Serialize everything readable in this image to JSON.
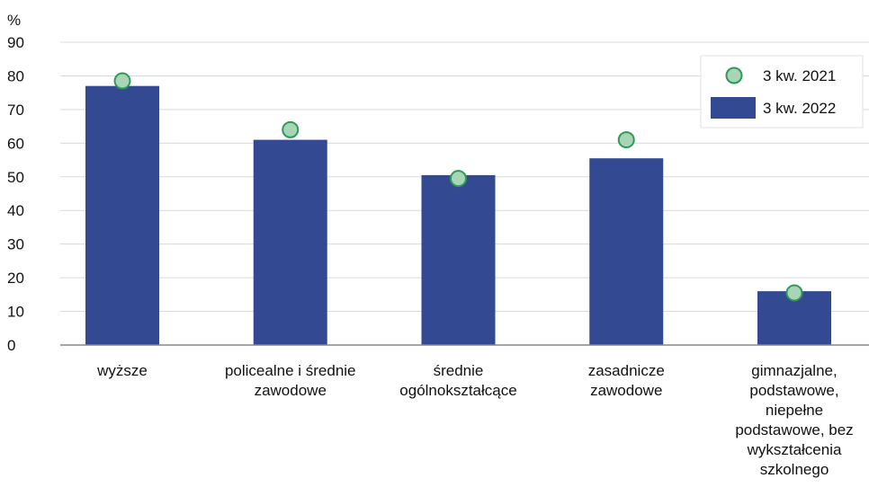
{
  "chart_data": {
    "type": "bar",
    "unit": "%",
    "categories": [
      [
        "wyższe"
      ],
      [
        "policealne i średnie",
        "zawodowe"
      ],
      [
        "średnie",
        "ogólnokształcące"
      ],
      [
        "zasadnicze",
        "zawodowe"
      ],
      [
        "gimnazjalne,",
        "podstawowe,",
        "niepełne",
        "podstawowe, bez",
        "wykształcenia",
        "szkolnego"
      ]
    ],
    "series": [
      {
        "name": "3 kw. 2022",
        "kind": "bar",
        "values": [
          77,
          61,
          50.5,
          55.5,
          16
        ],
        "color": "#334a93"
      },
      {
        "name": "3 kw. 2021",
        "kind": "point",
        "values": [
          78.5,
          64,
          49.5,
          61,
          15.5
        ],
        "color": "#a8d5b5",
        "stroke": "#2e9a57"
      }
    ],
    "ylim": [
      0,
      90
    ],
    "yticks": [
      0,
      10,
      20,
      30,
      40,
      50,
      60,
      70,
      80,
      90
    ],
    "grid": true,
    "legend_position": "top-right",
    "legend_order": [
      "3 kw. 2021",
      "3 kw. 2022"
    ]
  },
  "colors": {
    "bar": "#334a93",
    "point_fill": "#a8d5b5",
    "point_stroke": "#2e9a57",
    "grid": "#d9d9d9",
    "axis": "#888888"
  }
}
